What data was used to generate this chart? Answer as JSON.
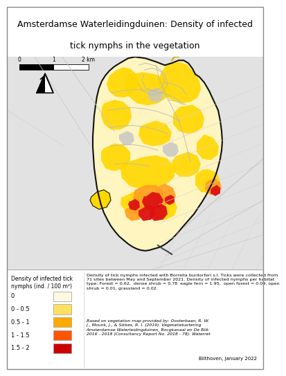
{
  "title_line1": "Amsterdamse Waterleidingduinen: Density of infected",
  "title_line2": "tick nymphs in the vegetation",
  "title_fontsize": 9.0,
  "outer_bg": "#e2e2e2",
  "terrain_bg": "#ebebeb",
  "reserve_light": "#fff5c0",
  "reserve_medium": "#ffd700",
  "reserve_dark": "#ffa020",
  "reserve_red": "#dd1111",
  "reserve_gray": "#c0c0c0",
  "reserve_outline": "#111111",
  "road_color": "#b8b8b8",
  "legend_title": "Density of infected tick\nnymphs (ind. / 100 m²)",
  "legend_labels": [
    "0",
    "0 - 0.5",
    "0.5 - 1",
    "1 - 1.5",
    "1.5 - 2"
  ],
  "legend_colors": [
    "#fff8e0",
    "#ffe060",
    "#ffaa00",
    "#ff5500",
    "#cc0000"
  ],
  "desc_text": "Density of tick nymphs infected with Borrelia burdorferi s.l. Ticks were collected from\n71 sites between May and September 2021. Density of infected nymphs per habitat\ntype: Forest = 0.62,  dense shrub = 0.78  eagle fern = 1.95,  open forest = 0.09, open\nshrub = 0.01, grassland = 0.02.",
  "ref_text": "Based on vegetation map provided by: Oosterbaan, R. W.\nJ., Mounk, J., & Sikkes, R. I. (2019). Vegetatiekartering\nAmsterdamse Waterleidingduinen, Bocgkanaal en De Bilk\n2016 - 2018 (Consultancy Report No. 2018 - 78). Waterret",
  "credit_text": "Bilthoven, January 2022",
  "scalebar_labels": [
    "0",
    "1",
    "2 km"
  ]
}
